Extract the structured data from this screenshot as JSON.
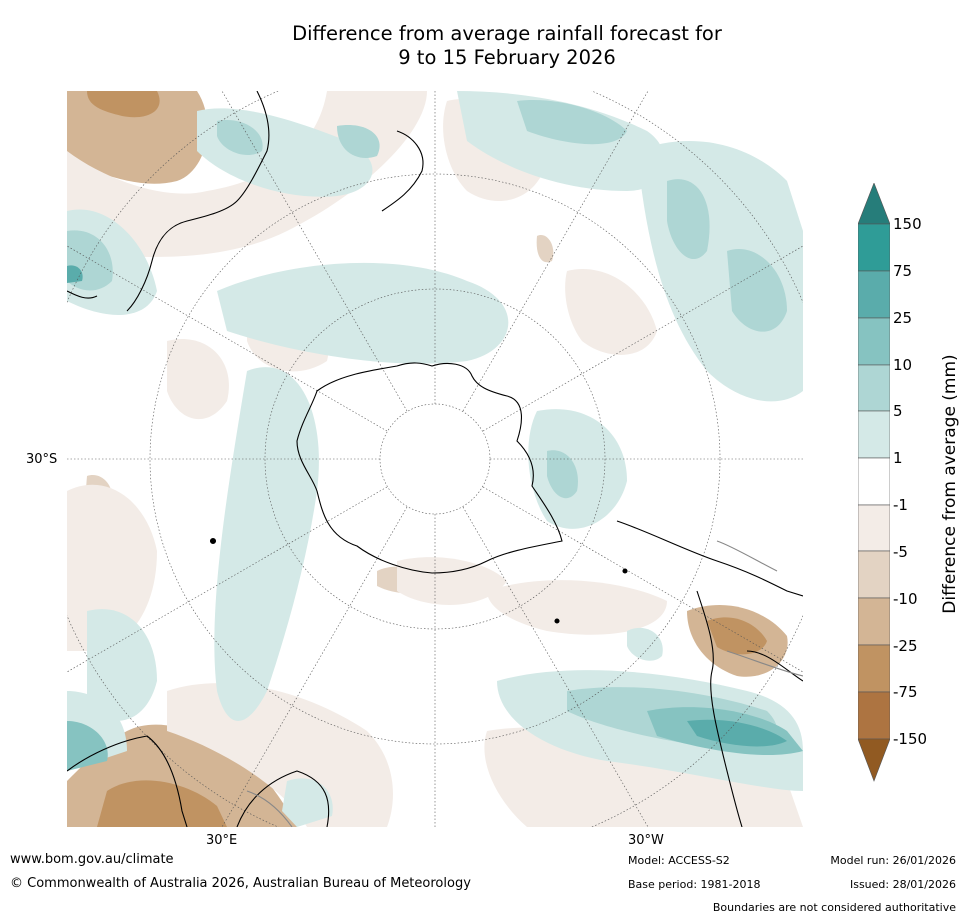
{
  "title": {
    "line1": "Difference from average rainfall forecast for",
    "line2": "9 to 15 February 2026"
  },
  "map": {
    "projection": "South polar stereographic",
    "lat_label": "30°S",
    "lon_labels": [
      "30°E",
      "30°W"
    ]
  },
  "colorbar": {
    "label": "Difference from average (mm)",
    "ticks": [
      "150",
      "75",
      "25",
      "10",
      "5",
      "1",
      "-1",
      "-5",
      "-10",
      "-25",
      "-75",
      "-150"
    ],
    "colors": {
      "over": "#267d7a",
      "gt75": "#2f9c97",
      "25to75": "#5aacab",
      "10to25": "#86c3c1",
      "5to10": "#aed6d4",
      "1to5": "#d4e9e7",
      "neutral": "#ffffff",
      "m1tom5": "#f3ece7",
      "m5tom10": "#e3d3c3",
      "m10tom25": "#d3b595",
      "m25tom75": "#c09362",
      "m75tom150": "#ad7441",
      "under": "#915a22"
    }
  },
  "footer": {
    "website": "www.bom.gov.au/climate",
    "copyright": "© Commonwealth of Australia 2026, Australian Bureau of Meteorology",
    "model": "Model: ACCESS-S2",
    "base_period": "Base period: 1981-2018",
    "model_run": "Model run: 26/01/2026",
    "issued": "Issued: 28/01/2026",
    "disclaimer": "Boundaries are not considered authoritative"
  }
}
